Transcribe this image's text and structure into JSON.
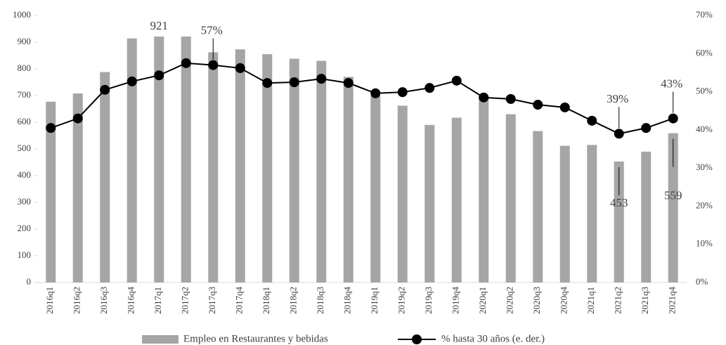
{
  "chart_data": {
    "type": "bar-line",
    "categories": [
      "2016q1",
      "2016q2",
      "2016q3",
      "2016q4",
      "2017q1",
      "2017q2",
      "2017q3",
      "2017q4",
      "2018q1",
      "2018q2",
      "2018q3",
      "2018q4",
      "2019q1",
      "2019q2",
      "2019q3",
      "2019q4",
      "2020q1",
      "2020q2",
      "2020q3",
      "2020q4",
      "2021q1",
      "2021q2",
      "2021q3",
      "2021q4"
    ],
    "series": [
      {
        "name": "Empleo en Restaurantes y bebidas",
        "type": "bar",
        "color": "#a5a5a5",
        "values": [
          677,
          708,
          788,
          914,
          921,
          921,
          862,
          873,
          855,
          838,
          830,
          770,
          700,
          662,
          590,
          617,
          700,
          630,
          567,
          512,
          515,
          453,
          490,
          559
        ],
        "value_labels": [
          null,
          null,
          null,
          null,
          "921",
          null,
          null,
          null,
          null,
          null,
          null,
          null,
          null,
          null,
          null,
          null,
          null,
          null,
          null,
          null,
          null,
          "453",
          null,
          "559"
        ]
      },
      {
        "name": "% hasta 30 años (e. der.)",
        "type": "line",
        "axis": "y2",
        "color": "#000000",
        "values": [
          40.5,
          43,
          50.5,
          52.7,
          54.3,
          57.5,
          57,
          56.2,
          52.3,
          52.5,
          53.4,
          52.3,
          49.6,
          49.9,
          51,
          52.9,
          48.5,
          48.1,
          46.6,
          45.9,
          42.4,
          39,
          40.5,
          43
        ],
        "value_labels": [
          null,
          null,
          null,
          null,
          null,
          null,
          "57%",
          null,
          null,
          null,
          null,
          null,
          null,
          null,
          null,
          null,
          null,
          null,
          null,
          null,
          null,
          "39%",
          null,
          "43%"
        ]
      }
    ],
    "ylim": [
      0,
      1000
    ],
    "yticks": [
      0,
      100,
      200,
      300,
      400,
      500,
      600,
      700,
      800,
      900,
      1000
    ],
    "y2lim": [
      0,
      70
    ],
    "y2ticks": [
      {
        "value": 0,
        "label": "0%"
      },
      {
        "value": 10,
        "label": "10%"
      },
      {
        "value": 20,
        "label": "20%"
      },
      {
        "value": 30,
        "label": "30%"
      },
      {
        "value": 40,
        "label": "40%"
      },
      {
        "value": 50,
        "label": "50%"
      },
      {
        "value": 60,
        "label": "60%"
      },
      {
        "value": 70,
        "label": "70%"
      }
    ],
    "grid": false,
    "legend": "bottom"
  }
}
